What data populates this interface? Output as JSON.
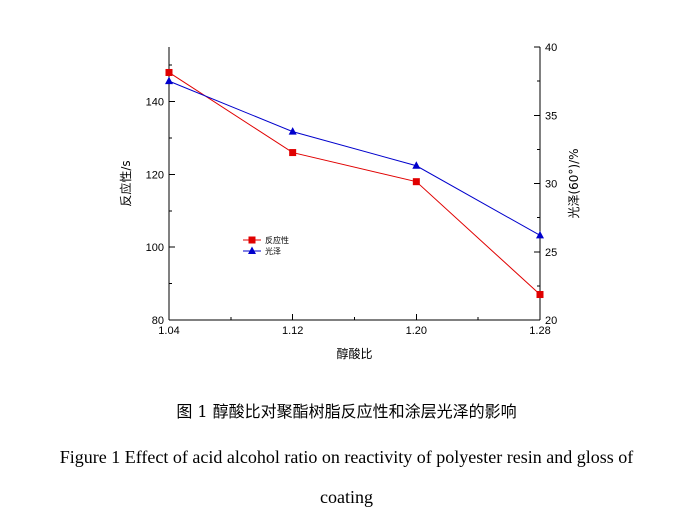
{
  "chart_data": {
    "type": "line",
    "x": [
      "1.04",
      "1.12",
      "1.20",
      "1.28"
    ],
    "xlabel": "醇酸比",
    "xlim": [
      1.04,
      1.28
    ],
    "x_ticks": [
      "1.04",
      "1.12",
      "1.20",
      "1.28"
    ],
    "ylabel_left": "反应性/s",
    "ylim_left": [
      80,
      155
    ],
    "y_ticks_left": [
      "80",
      "100",
      "120",
      "140"
    ],
    "ylabel_right": "光泽(60°)/%",
    "ylim_right": [
      20,
      40
    ],
    "y_ticks_right": [
      "20",
      "25",
      "30",
      "35",
      "40"
    ],
    "series": [
      {
        "name": "反应性",
        "axis": "left",
        "color": "#e00000",
        "marker": "square",
        "values": [
          148,
          126,
          118,
          87
        ]
      },
      {
        "name": "光泽",
        "axis": "right",
        "color": "#0000cc",
        "marker": "triangle",
        "values": [
          37.5,
          33.8,
          31.3,
          26.2
        ]
      }
    ],
    "legend_position": "center-left",
    "grid": false
  },
  "caption": {
    "chinese": "图 1  醇酸比对聚酯树脂反应性和涂层光泽的影响",
    "english": "Figure 1 Effect of acid alcohol ratio on reactivity of polyester resin and gloss of coating"
  }
}
